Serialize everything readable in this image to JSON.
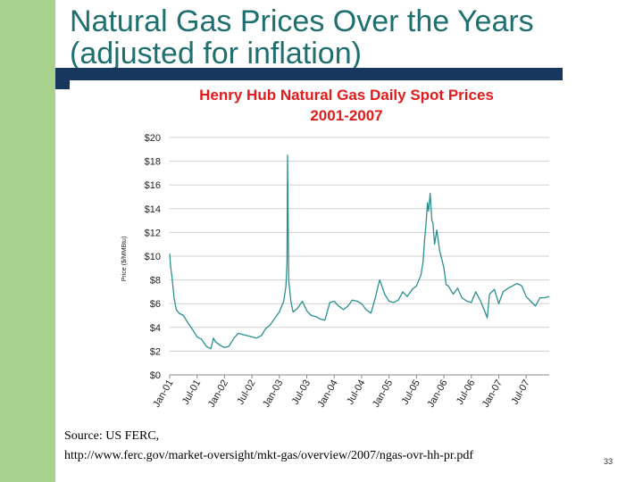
{
  "slide": {
    "title_line1": "Natural Gas Prices Over the Years",
    "title_line2": "(adjusted for inflation)",
    "source_line1": "Source: US FERC,",
    "source_line2": "http://www.ferc.gov/market-oversight/mkt-gas/overview/2007/ngas-ovr-hh-pr.pdf",
    "page_number": "33",
    "colors": {
      "title": "#1f6f6f",
      "band": "#a9d18e",
      "bar": "#17375e",
      "chart_title": "#e11b1b",
      "series": "#2b8f8f"
    }
  },
  "chart_data": {
    "type": "line",
    "title_line1": "Henry Hub Natural Gas Daily Spot Prices",
    "title_line2": "2001-2007",
    "xlabel": "",
    "ylabel": "Price ($/MMBtu)",
    "ylim": [
      0,
      20
    ],
    "yticks": [
      0,
      2,
      4,
      6,
      8,
      10,
      12,
      14,
      16,
      18,
      20
    ],
    "ytick_labels": [
      "$0",
      "$2",
      "$4",
      "$6",
      "$8",
      "$10",
      "$12",
      "$14",
      "$16",
      "$18",
      "$20"
    ],
    "xlim": [
      2001.0,
      2007.92
    ],
    "xticks": [
      2001.0,
      2001.5,
      2002.0,
      2002.5,
      2003.0,
      2003.5,
      2004.0,
      2004.5,
      2005.0,
      2005.5,
      2006.0,
      2006.5,
      2007.0,
      2007.5
    ],
    "xtick_labels": [
      "Jan-01",
      "Jul-01",
      "Jan-02",
      "Jul-02",
      "Jan-03",
      "Jul-03",
      "Jan-04",
      "Jul-04",
      "Jan-05",
      "Jul-05",
      "Jan-06",
      "Jul-06",
      "Jan-07",
      "Jul-07"
    ],
    "grid": true,
    "series": [
      {
        "name": "Henry Hub spot price",
        "x": [
          2001.0,
          2001.02,
          2001.04,
          2001.06,
          2001.08,
          2001.12,
          2001.17,
          2001.25,
          2001.33,
          2001.42,
          2001.5,
          2001.58,
          2001.67,
          2001.75,
          2001.8,
          2001.83,
          2001.92,
          2002.0,
          2002.08,
          2002.17,
          2002.25,
          2002.33,
          2002.42,
          2002.5,
          2002.58,
          2002.67,
          2002.75,
          2002.83,
          2002.92,
          2003.0,
          2003.08,
          2003.12,
          2003.14,
          2003.15,
          2003.17,
          2003.21,
          2003.25,
          2003.33,
          2003.42,
          2003.5,
          2003.58,
          2003.67,
          2003.75,
          2003.83,
          2003.92,
          2004.0,
          2004.08,
          2004.17,
          2004.25,
          2004.33,
          2004.42,
          2004.5,
          2004.58,
          2004.67,
          2004.75,
          2004.8,
          2004.83,
          2004.92,
          2005.0,
          2005.08,
          2005.17,
          2005.25,
          2005.33,
          2005.42,
          2005.5,
          2005.58,
          2005.62,
          2005.65,
          2005.67,
          2005.7,
          2005.72,
          2005.75,
          2005.78,
          2005.8,
          2005.83,
          2005.87,
          2005.92,
          2006.0,
          2006.04,
          2006.08,
          2006.17,
          2006.25,
          2006.33,
          2006.42,
          2006.5,
          2006.58,
          2006.67,
          2006.75,
          2006.79,
          2006.83,
          2006.92,
          2007.0,
          2007.08,
          2007.17,
          2007.25,
          2007.33,
          2007.42,
          2007.5,
          2007.58,
          2007.67,
          2007.75,
          2007.83,
          2007.92
        ],
        "y": [
          10.2,
          9.0,
          8.3,
          7.4,
          6.5,
          5.5,
          5.2,
          5.0,
          4.4,
          3.8,
          3.2,
          3.0,
          2.4,
          2.2,
          3.1,
          2.8,
          2.5,
          2.3,
          2.4,
          3.1,
          3.5,
          3.4,
          3.3,
          3.2,
          3.1,
          3.3,
          3.9,
          4.2,
          4.8,
          5.3,
          6.2,
          7.5,
          9.5,
          18.5,
          8.0,
          6.2,
          5.3,
          5.6,
          6.2,
          5.4,
          5.0,
          4.9,
          4.7,
          4.6,
          6.1,
          6.2,
          5.8,
          5.5,
          5.8,
          6.3,
          6.2,
          6.0,
          5.5,
          5.2,
          6.5,
          7.5,
          8.0,
          6.8,
          6.2,
          6.1,
          6.3,
          7.0,
          6.6,
          7.2,
          7.5,
          8.4,
          9.5,
          11.5,
          12.5,
          14.5,
          13.8,
          15.3,
          13.0,
          12.8,
          11.0,
          12.2,
          10.5,
          9.0,
          7.6,
          7.5,
          6.8,
          7.3,
          6.5,
          6.2,
          6.1,
          7.0,
          6.2,
          5.3,
          4.8,
          6.8,
          7.2,
          6.0,
          7.0,
          7.3,
          7.5,
          7.7,
          7.5,
          6.6,
          6.2,
          5.8,
          6.5,
          6.5,
          6.6
        ]
      }
    ]
  }
}
